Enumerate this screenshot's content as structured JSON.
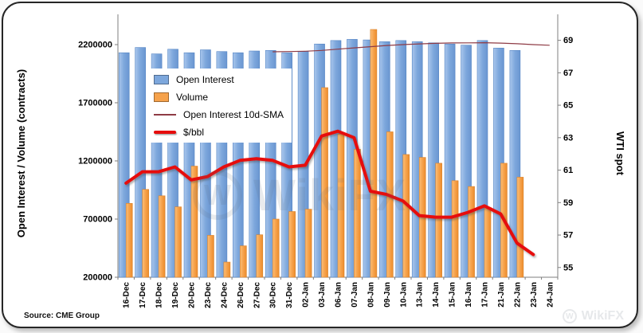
{
  "page": {
    "source": "Source: CME Group",
    "watermark": "WikiFX",
    "watermark_corner": "WikiFX"
  },
  "chart_data": {
    "type": "bar",
    "subtype": "combo-bar-line-dual-axis",
    "title": "",
    "legend_position": "upper-left-inside",
    "grid": false,
    "left_axis": {
      "label": "Open Interest / Volume (contracts)",
      "ticks": [
        2200000,
        1700000,
        1200000,
        700000,
        200000
      ],
      "min": 200000,
      "max": 2460000
    },
    "right_axis": {
      "label": "WTI spot",
      "ticks": [
        69,
        67,
        65,
        63,
        61,
        59,
        57,
        55
      ],
      "min": 54.4,
      "max": 70.6
    },
    "categories": [
      "16-Dec",
      "17-Dec",
      "18-Dec",
      "19-Dec",
      "20-Dec",
      "23-Dec",
      "24-Dec",
      "26-Dec",
      "27-Dec",
      "30-Dec",
      "31-Dec",
      "02-Jan",
      "03-Jan",
      "06-Jan",
      "07-Jan",
      "08-Jan",
      "09-Jan",
      "10-Jan",
      "13-Jan",
      "14-Jan",
      "15-Jan",
      "16-Jan",
      "17-Jan",
      "21-Jan",
      "22-Jan",
      "23-Jan",
      "24-Jan"
    ],
    "series": [
      {
        "name": "Open Interest",
        "type": "bar",
        "axis": "left",
        "color": "#7DA7DC",
        "stroke": "#5585C4",
        "values": [
          2130000,
          2175000,
          2120000,
          2160000,
          2130000,
          2155000,
          2140000,
          2130000,
          2145000,
          2150000,
          2130000,
          2140000,
          2205000,
          2235000,
          2245000,
          2240000,
          2225000,
          2235000,
          2225000,
          2215000,
          2205000,
          2195000,
          2235000,
          2170000,
          2150000,
          null,
          null
        ]
      },
      {
        "name": "Volume",
        "type": "bar",
        "axis": "left",
        "color": "#F6A24B",
        "stroke": "#D9822B",
        "values": [
          835000,
          955000,
          900000,
          805000,
          1155000,
          560000,
          330000,
          470000,
          565000,
          700000,
          765000,
          785000,
          1830000,
          1430000,
          1300000,
          2330000,
          1450000,
          1255000,
          1230000,
          1180000,
          1030000,
          980000,
          800000,
          1180000,
          1060000,
          null,
          null
        ]
      },
      {
        "name": "Open Interest 10d-SMA",
        "type": "line",
        "axis": "left",
        "color": "#8E3B45",
        "width": 1.2,
        "values": [
          null,
          null,
          null,
          null,
          null,
          null,
          null,
          null,
          null,
          2138000,
          2140000,
          2143000,
          2150000,
          2161000,
          2172000,
          2182000,
          2192000,
          2200000,
          2206000,
          2211000,
          2214000,
          2215000,
          2216000,
          2213000,
          2207000,
          2200000,
          2194000
        ]
      },
      {
        "name": "$/bbl",
        "type": "line",
        "axis": "right",
        "color": "#E60C0C",
        "width": 4,
        "values": [
          60.2,
          60.9,
          60.9,
          61.2,
          60.4,
          60.6,
          61.2,
          61.6,
          61.7,
          61.6,
          61.2,
          61.3,
          63.1,
          63.4,
          63.0,
          59.7,
          59.5,
          59.1,
          58.2,
          58.1,
          58.1,
          58.4,
          58.8,
          58.3,
          56.5,
          55.8,
          null
        ]
      }
    ]
  }
}
